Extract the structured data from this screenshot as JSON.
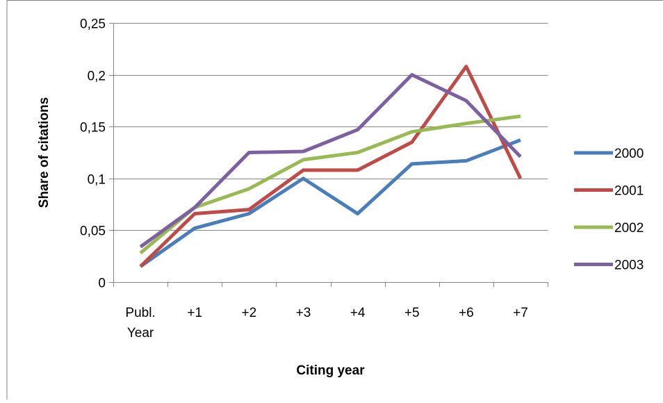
{
  "chart_data": {
    "type": "line",
    "categories": [
      "Publ. Year",
      "+1",
      "+2",
      "+3",
      "+4",
      "+5",
      "+6",
      "+7"
    ],
    "series": [
      {
        "name": "2000",
        "color": "#4a7ebb",
        "values": [
          0.015,
          0.052,
          0.066,
          0.1,
          0.066,
          0.114,
          0.117,
          0.137
        ]
      },
      {
        "name": "2001",
        "color": "#be4b48",
        "values": [
          0.015,
          0.066,
          0.07,
          0.108,
          0.108,
          0.135,
          0.208,
          0.1
        ]
      },
      {
        "name": "2002",
        "color": "#98b954",
        "values": [
          0.028,
          0.072,
          0.09,
          0.118,
          0.125,
          0.145,
          0.153,
          0.16
        ]
      },
      {
        "name": "2003",
        "color": "#7d60a0",
        "values": [
          0.034,
          0.072,
          0.125,
          0.126,
          0.147,
          0.2,
          0.175,
          0.121
        ]
      }
    ],
    "xlabel": "Citing year",
    "ylabel": "Share of citations",
    "ylim": [
      0,
      0.25
    ],
    "yticks": [
      0,
      0.05,
      0.1,
      0.15,
      0.2,
      0.25
    ],
    "ytick_labels": [
      "0",
      "0,05",
      "0,1",
      "0,15",
      "0,2",
      "0,25"
    ],
    "grid": true,
    "legend_position": "right"
  }
}
